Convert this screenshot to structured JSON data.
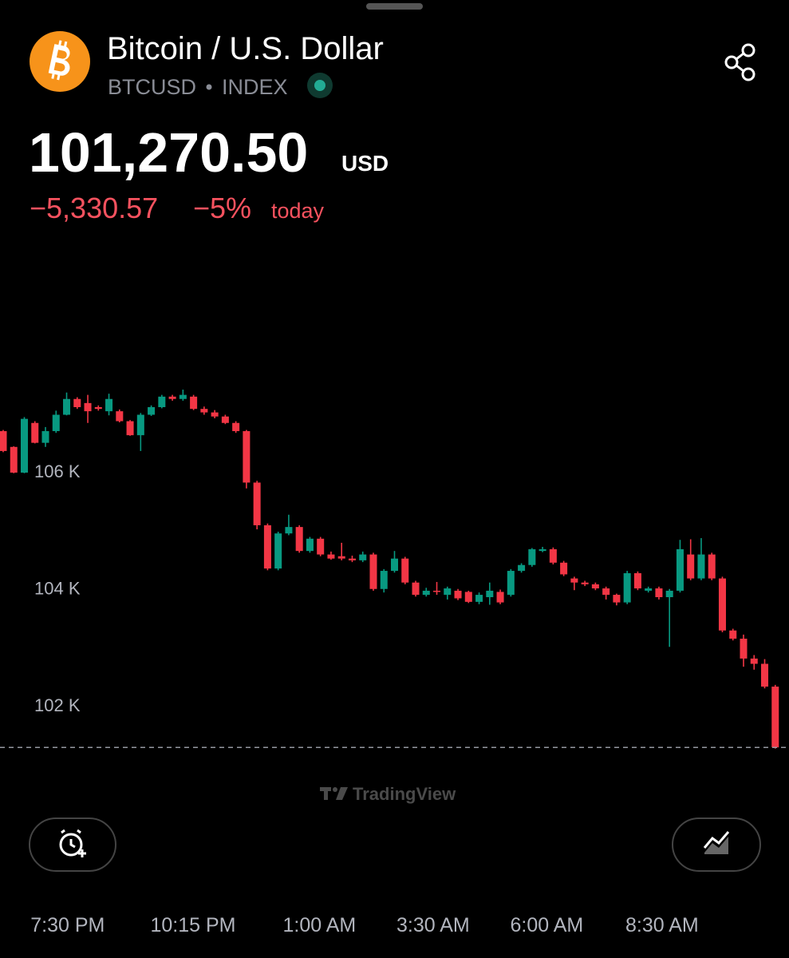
{
  "header": {
    "title": "Bitcoin / U.S. Dollar",
    "symbol": "BTCUSD",
    "exchange": "INDEX",
    "price": "101,270.50",
    "currency": "USD",
    "change": "−5,330.57",
    "change_percent": "−5%",
    "period": "today"
  },
  "watermark": "TradingView",
  "chart_data": {
    "type": "candlestick",
    "up_color": "#089981",
    "down_color": "#f23645",
    "last_value": 101270.5,
    "ylim": [
      101000,
      107800
    ],
    "yticks": [
      {
        "value": 106000,
        "label": "106 K"
      },
      {
        "value": 104000,
        "label": "104 K"
      },
      {
        "value": 102000,
        "label": "102 K"
      }
    ],
    "xlim": [
      -0.3,
      74.3
    ],
    "xticks": [
      {
        "value": 6.1,
        "label": "7:30 PM"
      },
      {
        "value": 17.95,
        "label": "10:15 PM"
      },
      {
        "value": 29.9,
        "label": "1:00 AM"
      },
      {
        "value": 40.65,
        "label": "3:30 AM"
      },
      {
        "value": 51.4,
        "label": "6:00 AM"
      },
      {
        "value": 62.3,
        "label": "8:30 AM"
      }
    ],
    "open": [
      106680,
      106410,
      105970,
      106820,
      106480,
      106680,
      106960,
      107230,
      107160,
      107090,
      107020,
      107020,
      106850,
      106610,
      106960,
      107090,
      107270,
      107230,
      107270,
      107060,
      107000,
      106930,
      106820,
      106680,
      105800,
      105070,
      104330,
      104930,
      105040,
      104630,
      104840,
      104570,
      104540,
      104500,
      104470,
      104570,
      103980,
      104290,
      104500,
      104090,
      103880,
      103950,
      103880,
      103950,
      103930,
      103760,
      103840,
      103930,
      103880,
      104290,
      104390,
      104630,
      104660,
      104430,
      104160,
      104090,
      104060,
      103990,
      103880,
      103750,
      104250,
      103950,
      103990,
      103840,
      103950,
      104570,
      104160,
      104570,
      104160,
      103270,
      103130,
      102790,
      102700,
      102310
    ],
    "high": [
      106700,
      106420,
      106920,
      106850,
      106750,
      107030,
      107340,
      107260,
      107300,
      107120,
      107320,
      107050,
      106870,
      106990,
      107120,
      107300,
      107300,
      107390,
      107300,
      107100,
      107040,
      106960,
      106850,
      106700,
      105830,
      105100,
      104960,
      105250,
      105070,
      104870,
      104870,
      104620,
      104770,
      104550,
      104620,
      104600,
      104320,
      104630,
      104530,
      104120,
      104000,
      104100,
      104020,
      103980,
      103950,
      103920,
      104090,
      103970,
      104320,
      104420,
      104680,
      104700,
      104690,
      104460,
      104190,
      104120,
      104090,
      104020,
      103900,
      104290,
      104280,
      104020,
      104020,
      103980,
      104820,
      104830,
      104850,
      104600,
      104190,
      103300,
      103200,
      102850,
      102780,
      102340
    ],
    "low": [
      106320,
      105960,
      105960,
      106470,
      106410,
      106650,
      106950,
      107060,
      106820,
      107030,
      106950,
      106830,
      106600,
      106340,
      106940,
      107070,
      107200,
      107200,
      107040,
      106960,
      106900,
      106800,
      106650,
      105700,
      105000,
      104300,
      104300,
      104900,
      104600,
      104600,
      104540,
      104480,
      104470,
      104440,
      104440,
      103950,
      103920,
      104260,
      104060,
      103850,
      103850,
      103880,
      103800,
      103790,
      103740,
      103720,
      103710,
      103720,
      103850,
      104260,
      104360,
      104610,
      104400,
      104200,
      103960,
      104030,
      103960,
      103800,
      103700,
      103720,
      103960,
      103920,
      103800,
      102990,
      103920,
      104130,
      104130,
      104130,
      103240,
      103100,
      102650,
      102600,
      102280,
      101250
    ],
    "close": [
      106340,
      105970,
      106890,
      106480,
      106680,
      106960,
      107230,
      107090,
      107020,
      107060,
      107230,
      106850,
      106610,
      106960,
      107090,
      107270,
      107230,
      107300,
      107060,
      107000,
      106930,
      106820,
      106680,
      105800,
      105070,
      104330,
      104930,
      105040,
      104630,
      104840,
      104570,
      104500,
      104500,
      104470,
      104570,
      103980,
      104290,
      104500,
      104090,
      103880,
      103950,
      103940,
      103990,
      103820,
      103760,
      103880,
      103950,
      103750,
      104290,
      104390,
      104660,
      104660,
      104430,
      104230,
      104090,
      104060,
      103990,
      103880,
      103750,
      104250,
      103990,
      103990,
      103840,
      103950,
      104660,
      104160,
      104570,
      104160,
      103270,
      103130,
      102790,
      102700,
      102310,
      101270.5
    ]
  }
}
